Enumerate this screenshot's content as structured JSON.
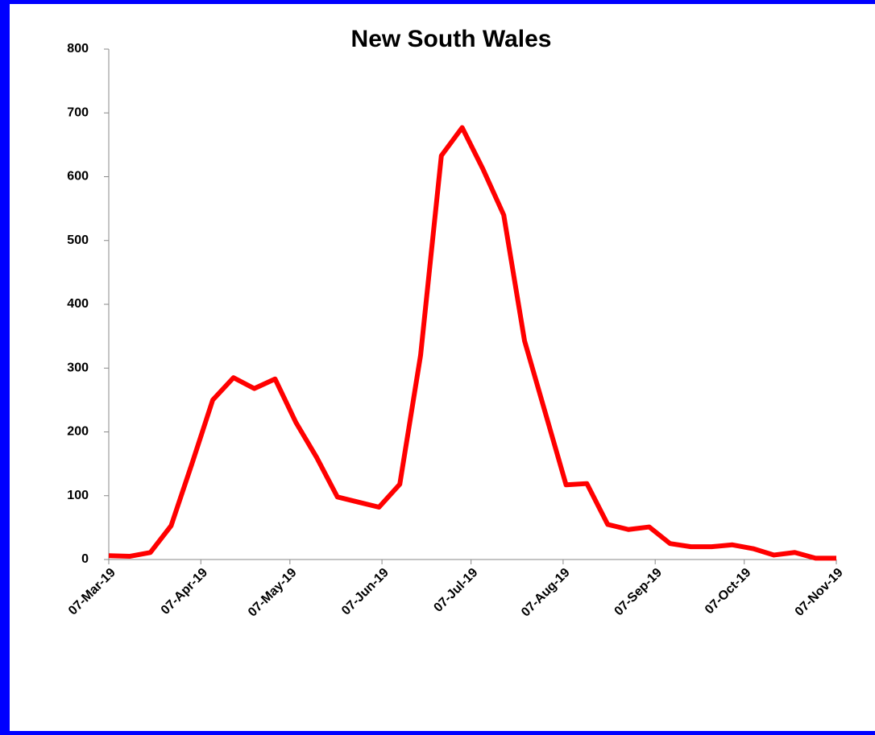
{
  "chart_data": {
    "type": "line",
    "title": "New South Wales",
    "x": [
      "2019-03-07",
      "2019-03-14",
      "2019-03-21",
      "2019-03-28",
      "2019-04-04",
      "2019-04-11",
      "2019-04-18",
      "2019-04-25",
      "2019-05-02",
      "2019-05-09",
      "2019-05-16",
      "2019-05-23",
      "2019-05-30",
      "2019-06-06",
      "2019-06-13",
      "2019-06-20",
      "2019-06-27",
      "2019-07-04",
      "2019-07-11",
      "2019-07-18",
      "2019-07-25",
      "2019-08-01",
      "2019-08-08",
      "2019-08-15",
      "2019-08-22",
      "2019-08-29",
      "2019-09-05",
      "2019-09-12",
      "2019-09-19",
      "2019-09-26",
      "2019-10-03",
      "2019-10-10",
      "2019-10-17",
      "2019-10-24",
      "2019-10-31",
      "2019-11-07"
    ],
    "series": [
      {
        "color": "#ff0000",
        "values": [
          6,
          5,
          11,
          53,
          150,
          250,
          285,
          268,
          283,
          215,
          160,
          98,
          90,
          82,
          118,
          320,
          633,
          677,
          612,
          540,
          343,
          230,
          117,
          119,
          55,
          47,
          51,
          25,
          20,
          20,
          23,
          17,
          7,
          11,
          2,
          2
        ]
      }
    ],
    "xlim": [
      "2019-03-07",
      "2019-11-07"
    ],
    "xticks": [
      {
        "value": "2019-03-07",
        "label": "07-Mar-19"
      },
      {
        "value": "2019-04-07",
        "label": "07-Apr-19"
      },
      {
        "value": "2019-05-07",
        "label": "07-May-19"
      },
      {
        "value": "2019-06-07",
        "label": "07-Jun-19"
      },
      {
        "value": "2019-07-07",
        "label": "07-Jul-19"
      },
      {
        "value": "2019-08-07",
        "label": "07-Aug-19"
      },
      {
        "value": "2019-09-07",
        "label": "07-Sep-19"
      },
      {
        "value": "2019-10-07",
        "label": "07-Oct-19"
      },
      {
        "value": "2019-11-07",
        "label": "07-Nov-19"
      }
    ],
    "ylim": [
      0,
      800
    ],
    "yticks": [
      0,
      100,
      200,
      300,
      400,
      500,
      600,
      700,
      800
    ],
    "grid": false
  }
}
